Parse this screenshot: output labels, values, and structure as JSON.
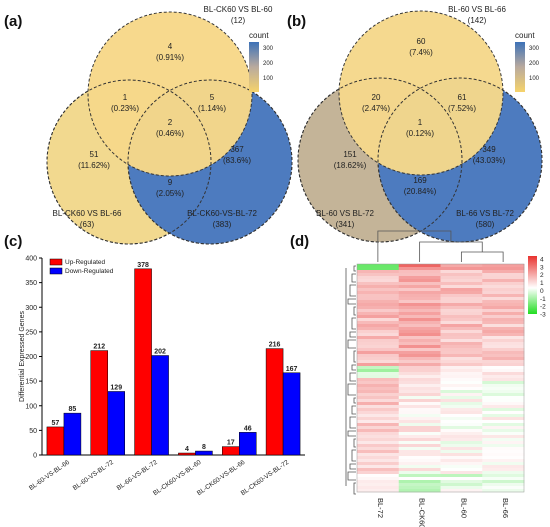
{
  "panels": {
    "a": "(a)",
    "b": "(b)",
    "c": "(c)",
    "d": "(d)"
  },
  "colorbar_count": {
    "title": "count",
    "ticks": [
      "300",
      "200",
      "100"
    ],
    "top_color": "#3d72b8",
    "bottom_color": "#f6d36b"
  },
  "heatmap_colorbar": {
    "ticks": [
      "4",
      "3",
      "2",
      "1",
      "0",
      "-1",
      "-2",
      "-3"
    ],
    "top_color": "#e8322f",
    "mid_color": "#ffffff",
    "bottom_color": "#22dd22"
  },
  "chart_data": [
    {
      "panel": "a",
      "type": "venn",
      "sets": [
        {
          "name": "BL-CK60 VS BL-60",
          "total": "(12)"
        },
        {
          "name": "BL-CK60 VS BL-66",
          "total": "(63)"
        },
        {
          "name": "BL-CK60-VS-BL-72",
          "total": "(383)"
        }
      ],
      "regions": [
        {
          "count": "4",
          "pct": "(0.91%)"
        },
        {
          "count": "1",
          "pct": "(0.23%)"
        },
        {
          "count": "5",
          "pct": "(1.14%)"
        },
        {
          "count": "2",
          "pct": "(0.46%)"
        },
        {
          "count": "51",
          "pct": "(11.62%)"
        },
        {
          "count": "9",
          "pct": "(2.05%)"
        },
        {
          "count": "367",
          "pct": "(83.6%)"
        }
      ]
    },
    {
      "panel": "b",
      "type": "venn",
      "sets": [
        {
          "name": "BL-60 VS BL-66",
          "total": "(142)"
        },
        {
          "name": "BL-60 VS BL-72",
          "total": "(341)"
        },
        {
          "name": "BL-66 VS BL-72",
          "total": "(580)"
        }
      ],
      "regions": [
        {
          "count": "60",
          "pct": "(7.4%)"
        },
        {
          "count": "20",
          "pct": "(2.47%)"
        },
        {
          "count": "61",
          "pct": "(7.52%)"
        },
        {
          "count": "1",
          "pct": "(0.12%)"
        },
        {
          "count": "151",
          "pct": "(18.62%)"
        },
        {
          "count": "169",
          "pct": "(20.84%)"
        },
        {
          "count": "349",
          "pct": "(43.03%)"
        }
      ]
    },
    {
      "panel": "c",
      "type": "bar",
      "ylabel": "Differential Expressed Genes",
      "ylim": [
        0,
        400
      ],
      "yticks": [
        0,
        50,
        100,
        150,
        200,
        250,
        300,
        350,
        400
      ],
      "categories": [
        "BL-60-VS-BL-66",
        "BL-60-VS-BL-72",
        "BL-66-VS-BL-72",
        "BL-CK60-VS-BL-60",
        "BL-CK60-VS-BL-66",
        "BL-CK60-VS-BL-72"
      ],
      "series": [
        {
          "name": "Up-Regulated",
          "color": "#ff0000",
          "values": [
            57,
            212,
            378,
            4,
            17,
            216
          ]
        },
        {
          "name": "Down-Regulated",
          "color": "#0000ff",
          "values": [
            85,
            129,
            202,
            8,
            46,
            167
          ]
        }
      ],
      "legend": "top-left",
      "grid": false
    },
    {
      "panel": "d",
      "type": "heatmap",
      "columns": [
        "BL-72",
        "BL-CK60",
        "BL-60",
        "BL-66"
      ],
      "color_range": [
        -3,
        4
      ]
    }
  ]
}
